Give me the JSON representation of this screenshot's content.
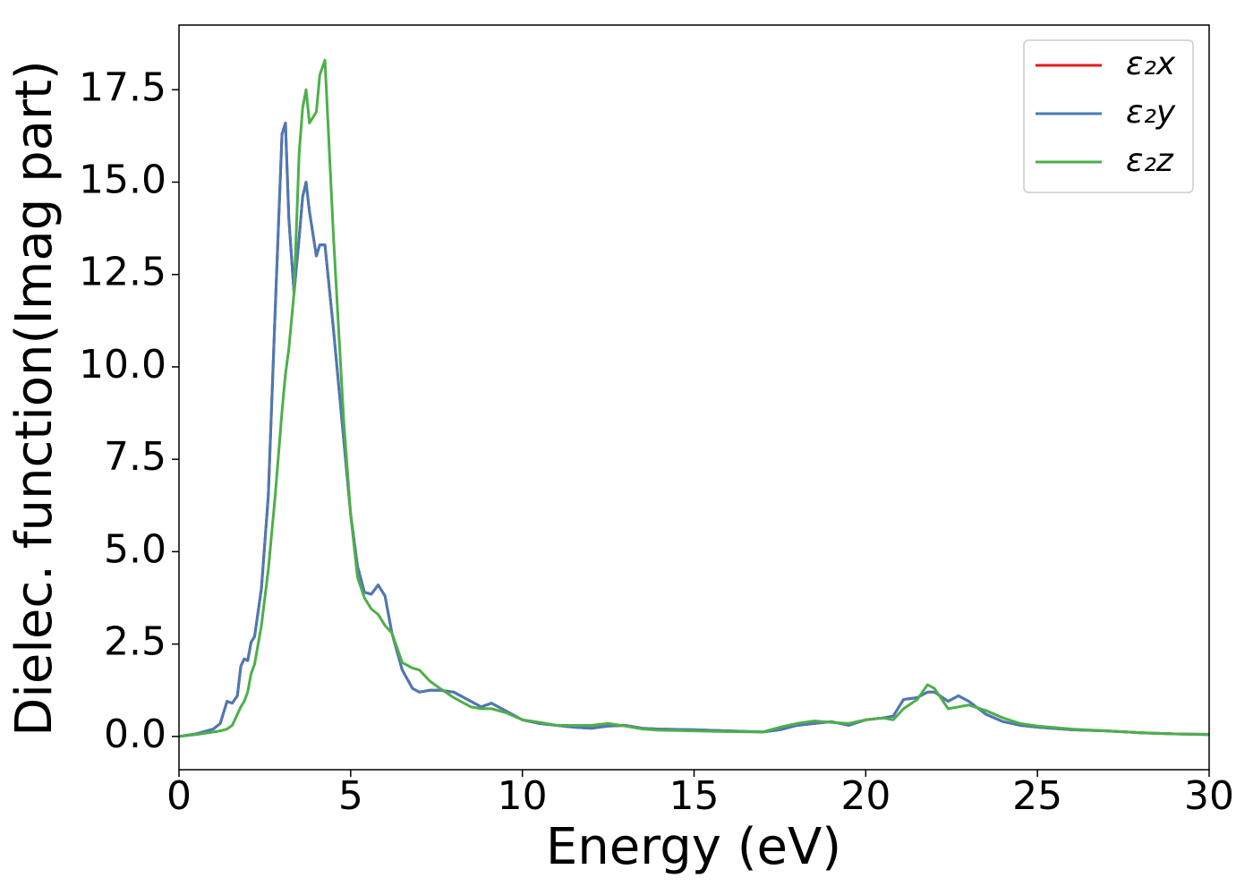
{
  "chart_data": {
    "type": "line",
    "xlabel": "Energy (eV)",
    "ylabel": "Dielec. function(Imag part)",
    "x": [
      0,
      0.5,
      1,
      1.2,
      1.4,
      1.55,
      1.7,
      1.8,
      1.9,
      2.0,
      2.1,
      2.2,
      2.4,
      2.6,
      2.8,
      3.0,
      3.1,
      3.2,
      3.35,
      3.5,
      3.6,
      3.7,
      3.8,
      4.0,
      4.1,
      4.25,
      4.5,
      4.8,
      5.0,
      5.2,
      5.4,
      5.6,
      5.8,
      6.0,
      6.2,
      6.5,
      6.8,
      7.0,
      7.3,
      7.6,
      8,
      8.5,
      8.8,
      9.1,
      9.5,
      10,
      10.5,
      11,
      11.5,
      12,
      12.5,
      13,
      13.5,
      14,
      15,
      16,
      17,
      17.5,
      18,
      18.5,
      19,
      19.5,
      20,
      20.5,
      20.8,
      21.1,
      21.5,
      21.8,
      22,
      22.4,
      22.7,
      23,
      23.5,
      24,
      24.5,
      25,
      26,
      27,
      28,
      29,
      30
    ],
    "series": [
      {
        "name": "ε₂x",
        "color": "#e41a1c",
        "values": [
          0,
          0.07,
          0.2,
          0.35,
          0.95,
          0.9,
          1.1,
          1.9,
          2.1,
          2.05,
          2.55,
          2.7,
          4.0,
          6.5,
          11.5,
          16.3,
          16.6,
          14.0,
          12.0,
          13.5,
          14.6,
          15.0,
          14.2,
          13.0,
          13.3,
          13.3,
          11.0,
          8.0,
          6.0,
          4.6,
          3.9,
          3.85,
          4.1,
          3.8,
          2.8,
          1.8,
          1.3,
          1.2,
          1.25,
          1.25,
          1.2,
          0.95,
          0.8,
          0.9,
          0.7,
          0.45,
          0.35,
          0.3,
          0.25,
          0.22,
          0.28,
          0.3,
          0.22,
          0.2,
          0.18,
          0.15,
          0.12,
          0.18,
          0.3,
          0.35,
          0.4,
          0.3,
          0.45,
          0.5,
          0.55,
          1.0,
          1.05,
          1.2,
          1.2,
          0.95,
          1.1,
          0.95,
          0.6,
          0.4,
          0.3,
          0.25,
          0.18,
          0.15,
          0.1,
          0.07,
          0.05
        ]
      },
      {
        "name": "ε₂y",
        "color": "#4a7ab5",
        "values": [
          0,
          0.07,
          0.2,
          0.35,
          0.95,
          0.9,
          1.1,
          1.9,
          2.1,
          2.05,
          2.55,
          2.7,
          4.0,
          6.5,
          11.5,
          16.3,
          16.6,
          14.0,
          12.0,
          13.5,
          14.6,
          15.0,
          14.2,
          13.0,
          13.3,
          13.3,
          11.0,
          8.0,
          6.0,
          4.6,
          3.9,
          3.85,
          4.1,
          3.8,
          2.8,
          1.8,
          1.3,
          1.2,
          1.25,
          1.25,
          1.2,
          0.95,
          0.8,
          0.9,
          0.7,
          0.45,
          0.35,
          0.3,
          0.25,
          0.22,
          0.28,
          0.3,
          0.22,
          0.2,
          0.18,
          0.15,
          0.12,
          0.18,
          0.3,
          0.35,
          0.4,
          0.3,
          0.45,
          0.5,
          0.55,
          1.0,
          1.05,
          1.2,
          1.2,
          0.95,
          1.1,
          0.95,
          0.6,
          0.4,
          0.3,
          0.25,
          0.18,
          0.15,
          0.1,
          0.07,
          0.05
        ]
      },
      {
        "name": "ε₂z",
        "color": "#4daf4a",
        "values": [
          0,
          0.05,
          0.12,
          0.15,
          0.2,
          0.3,
          0.6,
          0.8,
          0.95,
          1.2,
          1.7,
          1.95,
          3.0,
          4.5,
          6.5,
          8.8,
          9.8,
          10.5,
          12.0,
          15.8,
          17.0,
          17.5,
          16.6,
          16.9,
          17.9,
          18.3,
          13.5,
          8.5,
          6.0,
          4.3,
          3.75,
          3.45,
          3.3,
          3.0,
          2.8,
          2.0,
          1.85,
          1.8,
          1.5,
          1.3,
          1.05,
          0.8,
          0.75,
          0.75,
          0.65,
          0.45,
          0.38,
          0.3,
          0.3,
          0.3,
          0.35,
          0.28,
          0.2,
          0.17,
          0.15,
          0.13,
          0.12,
          0.25,
          0.35,
          0.42,
          0.38,
          0.35,
          0.45,
          0.5,
          0.45,
          0.75,
          1.0,
          1.4,
          1.3,
          0.75,
          0.8,
          0.85,
          0.7,
          0.5,
          0.35,
          0.28,
          0.2,
          0.15,
          0.1,
          0.07,
          0.06
        ]
      }
    ],
    "xlim": [
      0,
      30
    ],
    "xticks": [
      0,
      5,
      10,
      15,
      20,
      25,
      30
    ],
    "ylim": [
      -0.9,
      19.25
    ],
    "yticks": [
      {
        "value": 0,
        "label": "0.0"
      },
      2.5,
      {
        "value": 5,
        "label": "5.0"
      },
      7.5,
      {
        "value": 10,
        "label": "10.0"
      },
      12.5,
      {
        "value": 15,
        "label": "15.0"
      },
      17.5
    ],
    "legend": "upper right",
    "grid": false
  }
}
